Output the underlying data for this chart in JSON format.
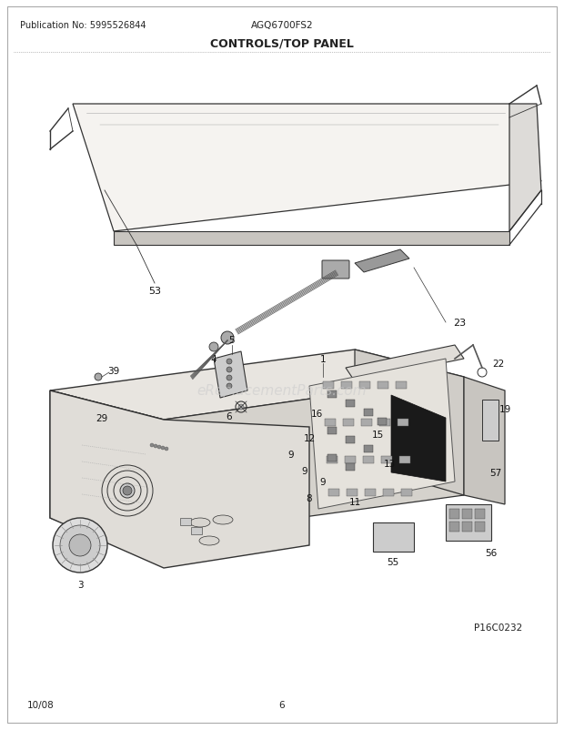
{
  "title": "CONTROLS/TOP PANEL",
  "pub_no": "Publication No: 5995526844",
  "model": "AGQ6700FS2",
  "date": "10/08",
  "page": "6",
  "watermark": "eReplacementParts.com",
  "diagram_code": "P16C0232",
  "bg_color": "#ffffff",
  "lc": "#333333",
  "lc2": "#555555",
  "text_color": "#222222",
  "fig_width": 6.2,
  "fig_height": 8.03,
  "dpi": 100
}
